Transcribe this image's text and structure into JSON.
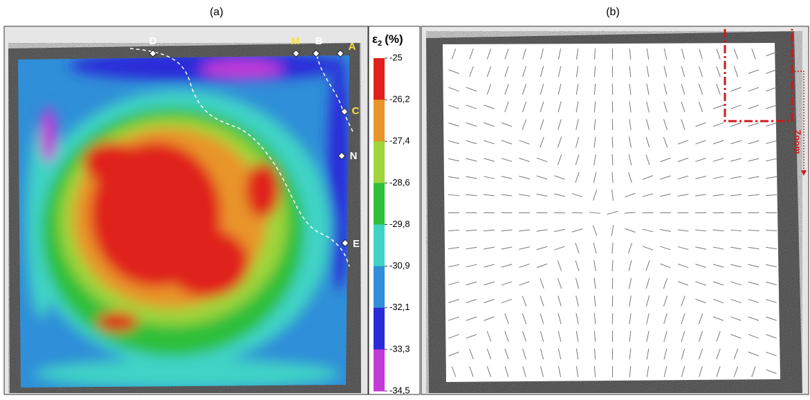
{
  "panels": [
    {
      "label": "(a)"
    },
    {
      "label": "(b)"
    }
  ],
  "colorbar": {
    "symbol": "ε",
    "subscript": "2",
    "unit": "(%)",
    "ticks": [
      "-25",
      "-26,2",
      "-27,4",
      "-28,6",
      "-29,8",
      "-30,9",
      "-32,1",
      "-33,3",
      "-34,5"
    ],
    "colors": [
      "#e0201e",
      "#e8952a",
      "#9fd43a",
      "#2fbf3a",
      "#3fd3c6",
      "#2f8fd8",
      "#2a2ad8",
      "#c23ad8"
    ]
  },
  "points": [
    {
      "label": "D"
    },
    {
      "label": "M"
    },
    {
      "label": "B"
    },
    {
      "label": "A"
    },
    {
      "label": "C"
    },
    {
      "label": "N"
    },
    {
      "label": "E"
    }
  ],
  "zoom": "Zoom"
}
